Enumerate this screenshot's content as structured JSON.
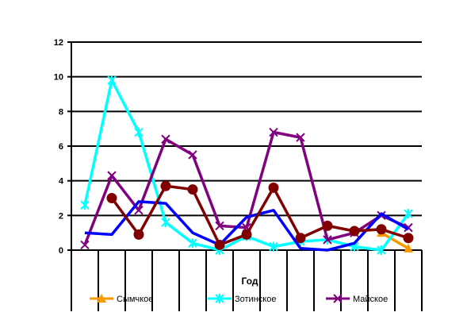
{
  "chart_data": {
    "type": "line",
    "xlabel": "Год",
    "ylabel": "",
    "ylim": [
      0,
      12
    ],
    "yticks": [
      0,
      2,
      4,
      6,
      8,
      10,
      12
    ],
    "grid": "horizontal",
    "legend_position": "bottom",
    "x": [
      1,
      2,
      3,
      4,
      5,
      6,
      7,
      8,
      9,
      10,
      11,
      12,
      13
    ],
    "series": [
      {
        "name": "Сымчкое",
        "color": "#F79A00",
        "marker": "triangle",
        "legend": true,
        "values": [
          null,
          null,
          null,
          null,
          null,
          null,
          null,
          null,
          null,
          null,
          null,
          1.0,
          0.1
        ]
      },
      {
        "name": "Зотинское",
        "color": "#00FFFF",
        "marker": "star",
        "legend": true,
        "values": [
          2.6,
          9.8,
          6.8,
          1.6,
          0.4,
          0.0,
          0.8,
          0.2,
          0.5,
          0.6,
          0.2,
          0.0,
          2.1
        ]
      },
      {
        "name": "Майское",
        "color": "#800080",
        "marker": "x",
        "legend": true,
        "values": [
          0.3,
          4.3,
          2.3,
          6.4,
          5.5,
          1.4,
          1.3,
          6.8,
          6.5,
          0.6,
          1.0,
          2.0,
          1.3
        ]
      },
      {
        "name": "",
        "color": "#0000FF",
        "marker": "none",
        "legend": false,
        "values": [
          1.0,
          0.9,
          2.8,
          2.7,
          1.0,
          0.3,
          1.9,
          2.3,
          0.1,
          0.0,
          0.4,
          2.1,
          1.2
        ]
      },
      {
        "name": "",
        "color": "#800000",
        "marker": "circle",
        "legend": false,
        "values": [
          null,
          3.0,
          0.9,
          3.7,
          3.5,
          0.3,
          0.9,
          3.6,
          0.7,
          1.4,
          1.1,
          1.2,
          0.7
        ]
      }
    ]
  }
}
